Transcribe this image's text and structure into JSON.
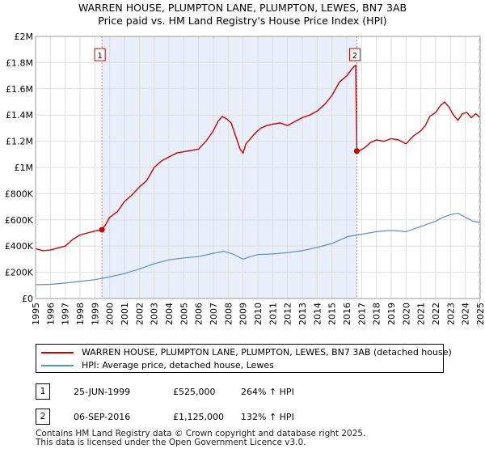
{
  "title_line1": "WARREN HOUSE, PLUMPTON LANE, PLUMPTON, LEWES, BN7 3AB",
  "title_line2": "Price paid vs. HM Land Registry's House Price Index (HPI)",
  "chart_data": {
    "type": "line",
    "title": "WARREN HOUSE, PLUMPTON LANE, PLUMPTON, LEWES, BN7 3AB — Price paid vs. HM Land Registry's House Price Index (HPI)",
    "xlabel": "",
    "ylabel": "",
    "xlim": [
      1995,
      2025
    ],
    "ylim": [
      0,
      2000000
    ],
    "y_ticks": [
      {
        "value": 0,
        "label": "£0"
      },
      {
        "value": 200000,
        "label": "£200K"
      },
      {
        "value": 400000,
        "label": "£400K"
      },
      {
        "value": 600000,
        "label": "£600K"
      },
      {
        "value": 800000,
        "label": "£800K"
      },
      {
        "value": 1000000,
        "label": "£1M"
      },
      {
        "value": 1200000,
        "label": "£1.2M"
      },
      {
        "value": 1400000,
        "label": "£1.4M"
      },
      {
        "value": 1600000,
        "label": "£1.6M"
      },
      {
        "value": 1800000,
        "label": "£1.8M"
      },
      {
        "value": 2000000,
        "label": "£2M"
      }
    ],
    "x_ticks": [
      "1995",
      "1996",
      "1997",
      "1998",
      "1999",
      "2000",
      "2001",
      "2002",
      "2003",
      "2004",
      "2005",
      "2006",
      "2007",
      "2008",
      "2009",
      "2010",
      "2011",
      "2012",
      "2013",
      "2014",
      "2015",
      "2016",
      "2017",
      "2018",
      "2019",
      "2020",
      "2021",
      "2022",
      "2023",
      "2024",
      "2025"
    ],
    "grid": true,
    "shaded_span": [
      1999.48,
      2016.68
    ],
    "series": [
      {
        "name": "WARREN HOUSE, PLUMPTON LANE, PLUMPTON, LEWES, BN7 3AB (detached house)",
        "color": "#cc0000",
        "x": [
          1995,
          1995.5,
          1996,
          1996.5,
          1997,
          1997.5,
          1998,
          1998.5,
          1999,
          1999.48,
          1999.7,
          2000,
          2000.5,
          2001,
          2001.5,
          2002,
          2002.5,
          2003,
          2003.5,
          2004,
          2004.5,
          2005,
          2005.5,
          2006,
          2006.5,
          2007,
          2007.3,
          2007.6,
          2007.9,
          2008.2,
          2008.5,
          2008.8,
          2009.0,
          2009.2,
          2009.5,
          2009.8,
          2010.2,
          2010.6,
          2011,
          2011.5,
          2012,
          2012.5,
          2013,
          2013.5,
          2014,
          2014.5,
          2015,
          2015.5,
          2016,
          2016.4,
          2016.6,
          2016.68,
          2016.9,
          2017.2,
          2017.6,
          2018,
          2018.5,
          2019,
          2019.5,
          2020,
          2020.5,
          2021,
          2021.3,
          2021.6,
          2022,
          2022.3,
          2022.6,
          2022.9,
          2023.2,
          2023.5,
          2023.8,
          2024.1,
          2024.4,
          2024.7,
          2025
        ],
        "y": [
          380000,
          365000,
          370000,
          385000,
          400000,
          450000,
          485000,
          500000,
          515000,
          525000,
          560000,
          620000,
          660000,
          740000,
          790000,
          850000,
          900000,
          1000000,
          1050000,
          1080000,
          1110000,
          1120000,
          1130000,
          1140000,
          1200000,
          1280000,
          1350000,
          1390000,
          1370000,
          1340000,
          1240000,
          1140000,
          1110000,
          1180000,
          1220000,
          1260000,
          1300000,
          1320000,
          1330000,
          1340000,
          1320000,
          1350000,
          1380000,
          1400000,
          1430000,
          1480000,
          1550000,
          1650000,
          1700000,
          1760000,
          1780000,
          1125000,
          1130000,
          1150000,
          1190000,
          1210000,
          1200000,
          1220000,
          1210000,
          1180000,
          1240000,
          1280000,
          1320000,
          1390000,
          1420000,
          1470000,
          1500000,
          1460000,
          1400000,
          1360000,
          1410000,
          1420000,
          1380000,
          1410000,
          1380000
        ]
      },
      {
        "name": "HPI: Average price, detached house, Lewes",
        "color": "#5b8cc8",
        "x": [
          1995,
          1996,
          1997,
          1998,
          1999,
          2000,
          2001,
          2002,
          2003,
          2004,
          2005,
          2006,
          2007,
          2007.7,
          2008.3,
          2009,
          2009.5,
          2010,
          2011,
          2012,
          2013,
          2014,
          2015,
          2016,
          2016.68,
          2017,
          2018,
          2019,
          2020,
          2021,
          2022,
          2022.5,
          2023,
          2023.5,
          2024,
          2024.5,
          2025
        ],
        "y": [
          105000,
          108000,
          118000,
          130000,
          144000,
          165000,
          190000,
          225000,
          265000,
          295000,
          310000,
          320000,
          345000,
          360000,
          340000,
          300000,
          320000,
          335000,
          340000,
          350000,
          365000,
          390000,
          420000,
          470000,
          485000,
          490000,
          510000,
          520000,
          510000,
          550000,
          590000,
          620000,
          640000,
          650000,
          620000,
          590000,
          580000
        ]
      }
    ],
    "sales": [
      {
        "label": "1",
        "date": "25-JUN-1999",
        "x": 1999.48,
        "price": 525000,
        "price_text": "£525,000",
        "hpi_text": "264% ↑ HPI"
      },
      {
        "label": "2",
        "date": "06-SEP-2016",
        "x": 2016.68,
        "price": 1125000,
        "price_text": "£1,125,000",
        "hpi_text": "132% ↑ HPI"
      }
    ]
  },
  "legend": {
    "property_label": "WARREN HOUSE, PLUMPTON LANE, PLUMPTON, LEWES, BN7 3AB (detached house)",
    "hpi_label": "HPI: Average price, detached house, Lewes",
    "property_color": "#cc0000",
    "hpi_color": "#5b8cc8"
  },
  "footer_line1": "Contains HM Land Registry data © Crown copyright and database right 2025.",
  "footer_line2": "This data is licensed under the Open Government Licence v3.0."
}
